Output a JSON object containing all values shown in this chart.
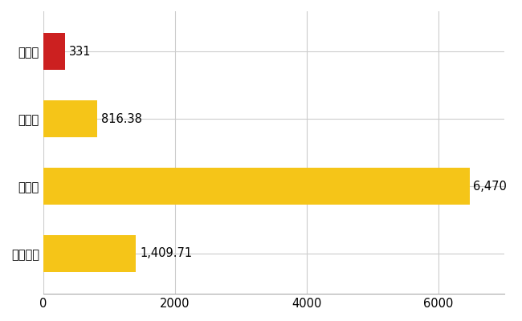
{
  "categories": [
    "階上町",
    "県平均",
    "県最大",
    "全国平均"
  ],
  "values": [
    331,
    816.38,
    6470,
    1409.71
  ],
  "labels": [
    "331",
    "816.38",
    "6,470",
    "1,409.71"
  ],
  "bar_colors": [
    "#cc2020",
    "#f5c518",
    "#f5c518",
    "#f5c518"
  ],
  "xlim": [
    0,
    7000
  ],
  "xticks": [
    0,
    2000,
    4000,
    6000
  ],
  "background_color": "#ffffff",
  "grid_color": "#cccccc",
  "label_fontsize": 10.5,
  "tick_fontsize": 10.5,
  "bar_height": 0.55
}
